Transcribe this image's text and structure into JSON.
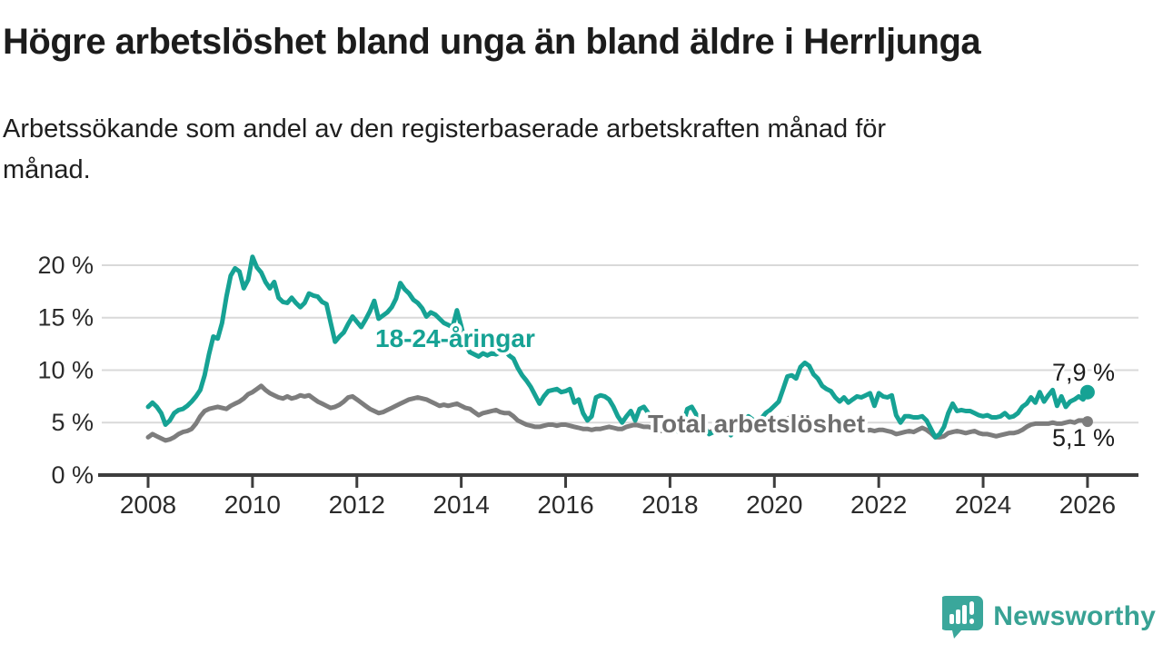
{
  "header": {
    "title": "Högre arbetslöshet bland unga än bland äldre i Herrljunga",
    "subtitle_line1": "Arbetssökande som andel av den registerbaserade arbetskraften månad för",
    "subtitle_line2": "månad."
  },
  "chart_data": {
    "type": "line",
    "title": "Högre arbetslöshet bland unga än bland äldre i Herrljunga",
    "subtitle": "Arbetssökande som andel av den registerbaserade arbetskraften månad för månad.",
    "x_start_year": 2008,
    "points_per_year": 12,
    "x_tick_years": [
      2008,
      2010,
      2012,
      2014,
      2016,
      2018,
      2020,
      2022,
      2024,
      2026
    ],
    "y_ticks": [
      0,
      5,
      10,
      15,
      20
    ],
    "y_tick_suffix": " %",
    "ylim": [
      0,
      22
    ],
    "grid": true,
    "colors": {
      "young": "#16a294",
      "total": "#7d7d7d",
      "total_label": "#6e6e6e",
      "grid": "#d9d9d9",
      "axis": "#3d3d3d",
      "tick_text": "#2b2b2b",
      "annotation_text": "#1c1c1c",
      "brand": "#38a294"
    },
    "series": [
      {
        "name": "18-24-åringar",
        "color": "#16a294",
        "end_label": "7,9 %",
        "end_value": 7.9,
        "values": [
          6.5,
          6.9,
          6.5,
          5.9,
          4.8,
          5.2,
          5.9,
          6.2,
          6.3,
          6.6,
          7.0,
          7.5,
          8.1,
          9.5,
          11.5,
          13.2,
          13.0,
          14.5,
          17.0,
          19.0,
          19.7,
          19.4,
          17.8,
          18.6,
          20.8,
          19.8,
          19.3,
          18.4,
          17.8,
          18.4,
          16.9,
          16.5,
          16.4,
          16.9,
          16.4,
          16.0,
          16.4,
          17.3,
          17.1,
          17.0,
          16.5,
          16.3,
          14.5,
          12.7,
          13.2,
          13.6,
          14.4,
          15.1,
          14.6,
          14.1,
          14.8,
          15.6,
          16.6,
          14.9,
          15.2,
          15.5,
          16.0,
          16.8,
          18.3,
          17.7,
          17.3,
          16.7,
          16.4,
          15.9,
          15.1,
          15.5,
          15.3,
          14.9,
          14.5,
          14.3,
          14.1,
          15.7,
          14.2,
          12.4,
          11.7,
          11.5,
          11.3,
          11.6,
          11.4,
          11.6,
          11.5,
          11.7,
          11.9,
          11.4,
          11.1,
          10.2,
          9.5,
          9.0,
          8.4,
          7.6,
          6.8,
          7.5,
          8.0,
          8.1,
          8.2,
          7.9,
          8.0,
          8.2,
          6.9,
          7.2,
          5.9,
          5.2,
          5.6,
          7.4,
          7.6,
          7.5,
          7.2,
          6.5,
          5.6,
          5.0,
          5.6,
          6.1,
          5.2,
          6.3,
          6.5,
          5.9,
          5.3,
          4.6,
          4.4,
          4.3,
          4.2,
          4.6,
          4.1,
          4.8,
          6.3,
          6.5,
          5.8,
          5.1,
          4.5,
          3.9,
          4.1,
          4.4,
          4.7,
          5.0,
          3.8,
          4.4,
          4.8,
          5.1,
          5.6,
          5.3,
          5.0,
          5.4,
          5.9,
          6.2,
          6.6,
          7.0,
          8.2,
          9.4,
          9.5,
          9.2,
          10.3,
          10.7,
          10.4,
          9.6,
          9.2,
          8.5,
          8.2,
          8.0,
          7.4,
          7.0,
          7.4,
          6.9,
          7.2,
          7.5,
          7.4,
          7.6,
          7.8,
          6.6,
          7.8,
          7.5,
          7.4,
          7.6,
          5.7,
          5.0,
          5.6,
          5.6,
          5.5,
          5.5,
          5.6,
          5.2,
          4.4,
          3.6,
          3.9,
          4.6,
          5.9,
          6.8,
          6.1,
          6.2,
          6.1,
          6.1,
          5.9,
          5.7,
          5.6,
          5.7,
          5.5,
          5.5,
          5.6,
          5.9,
          5.5,
          5.6,
          5.9,
          6.5,
          6.8,
          7.4,
          6.9,
          7.9,
          7.0,
          7.6,
          8.1,
          6.6,
          7.5,
          6.5,
          7.0,
          7.2,
          7.5,
          7.2,
          7.9
        ]
      },
      {
        "name": "Total arbetslöshet",
        "color": "#7d7d7d",
        "end_label": "5,1 %",
        "end_value": 5.1,
        "values": [
          3.6,
          3.9,
          3.7,
          3.5,
          3.3,
          3.4,
          3.6,
          3.9,
          4.1,
          4.2,
          4.4,
          4.9,
          5.6,
          6.1,
          6.3,
          6.4,
          6.5,
          6.4,
          6.3,
          6.6,
          6.8,
          7.0,
          7.3,
          7.7,
          7.9,
          8.2,
          8.5,
          8.1,
          7.8,
          7.6,
          7.4,
          7.3,
          7.5,
          7.3,
          7.4,
          7.6,
          7.5,
          7.6,
          7.3,
          7.0,
          6.8,
          6.6,
          6.4,
          6.5,
          6.7,
          7.0,
          7.4,
          7.5,
          7.2,
          6.9,
          6.6,
          6.3,
          6.1,
          5.9,
          6.0,
          6.2,
          6.4,
          6.6,
          6.8,
          7.0,
          7.2,
          7.3,
          7.4,
          7.3,
          7.2,
          7.0,
          6.8,
          6.6,
          6.7,
          6.6,
          6.7,
          6.8,
          6.6,
          6.4,
          6.3,
          6.0,
          5.7,
          5.9,
          6.0,
          6.1,
          6.2,
          6.0,
          5.9,
          5.9,
          5.6,
          5.2,
          5.0,
          4.8,
          4.7,
          4.6,
          4.6,
          4.7,
          4.8,
          4.8,
          4.7,
          4.8,
          4.8,
          4.7,
          4.6,
          4.5,
          4.4,
          4.4,
          4.3,
          4.4,
          4.4,
          4.5,
          4.6,
          4.5,
          4.4,
          4.4,
          4.6,
          4.7,
          4.8,
          4.7,
          4.6,
          4.6,
          4.5,
          4.3,
          4.2,
          4.2,
          4.2,
          4.3,
          4.4,
          4.5,
          4.6,
          4.5,
          4.4,
          4.3,
          4.2,
          4.1,
          4.2,
          4.3,
          4.2,
          4.3,
          4.4,
          4.3,
          4.2,
          4.3,
          4.4,
          4.5,
          4.4,
          4.5,
          4.6,
          4.7,
          4.8,
          4.9,
          5.1,
          5.4,
          5.5,
          5.4,
          5.3,
          5.2,
          5.1,
          5.0,
          4.9,
          4.9,
          4.8,
          4.8,
          4.7,
          4.6,
          4.5,
          4.4,
          4.3,
          4.3,
          4.2,
          4.2,
          4.3,
          4.2,
          4.3,
          4.3,
          4.2,
          4.1,
          3.9,
          4.0,
          4.1,
          4.2,
          4.1,
          4.3,
          4.5,
          4.3,
          4.0,
          3.6,
          3.6,
          3.7,
          4.0,
          4.1,
          4.2,
          4.1,
          4.0,
          4.1,
          4.2,
          4.0,
          3.9,
          3.9,
          3.8,
          3.7,
          3.8,
          3.9,
          4.0,
          4.0,
          4.1,
          4.3,
          4.6,
          4.8,
          4.9,
          4.9,
          4.9,
          4.9,
          5.0,
          4.9,
          4.9,
          5.0,
          5.1,
          5.0,
          5.2,
          5.2,
          5.1
        ]
      }
    ],
    "legend_position": "inline-labels"
  },
  "footer": {
    "brand": "Newsworthy"
  }
}
